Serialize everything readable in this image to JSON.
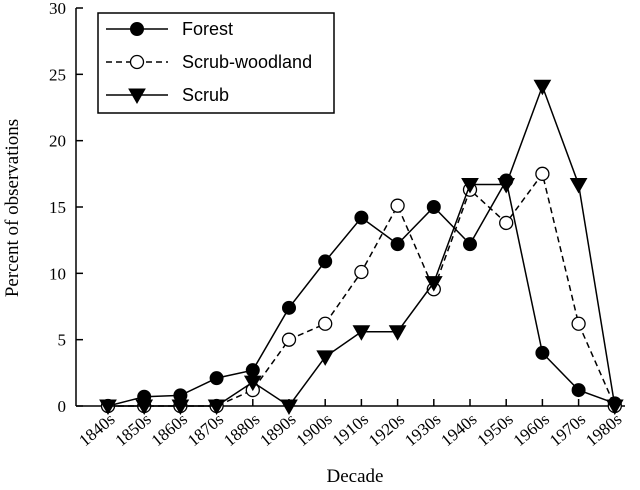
{
  "chart_data": {
    "type": "line",
    "title": "",
    "xlabel": "Decade",
    "ylabel": "Percent of observations",
    "ylim": [
      0,
      30
    ],
    "yticks": [
      0,
      5,
      10,
      15,
      20,
      25,
      30
    ],
    "grid": false,
    "legend_position": "top-left",
    "categories": [
      "1840s",
      "1850s",
      "1860s",
      "1870s",
      "1880s",
      "1890s",
      "1900s",
      "1910s",
      "1920s",
      "1930s",
      "1940s",
      "1950s",
      "1960s",
      "1970s",
      "1980s"
    ],
    "series": [
      {
        "name": "Forest",
        "line_style": "solid",
        "marker": "filled-circle",
        "values": [
          0,
          0.7,
          0.8,
          2.1,
          2.7,
          7.4,
          10.9,
          14.2,
          12.2,
          15.0,
          12.2,
          17.0,
          4.0,
          1.2,
          0.2
        ]
      },
      {
        "name": "Scrub-woodland",
        "line_style": "dashed",
        "marker": "open-circle",
        "values": [
          0,
          0,
          0,
          0,
          1.2,
          5.0,
          6.2,
          10.1,
          15.1,
          8.8,
          16.3,
          13.8,
          17.5,
          6.2,
          0
        ]
      },
      {
        "name": "Scrub",
        "line_style": "solid",
        "marker": "filled-triangle-down",
        "values": [
          0,
          0,
          0,
          0,
          1.8,
          0,
          3.7,
          5.6,
          5.6,
          9.3,
          16.7,
          16.7,
          24.1,
          16.7,
          0
        ]
      }
    ]
  }
}
